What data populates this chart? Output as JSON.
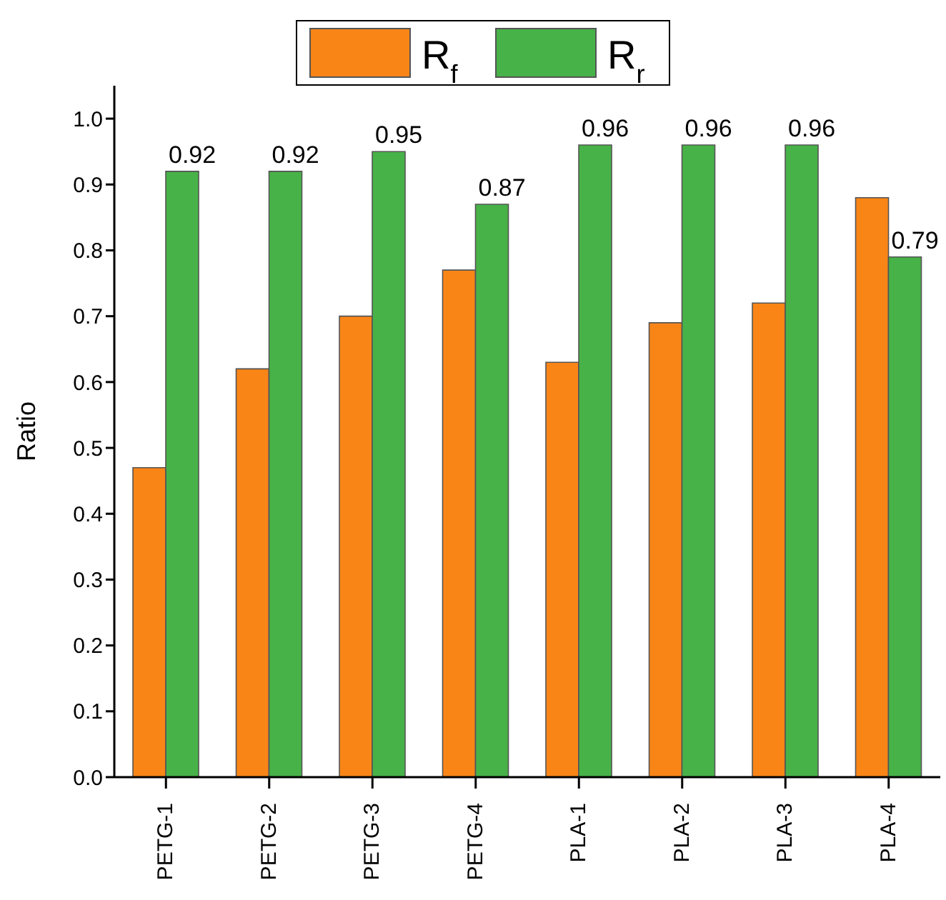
{
  "chart_data": {
    "type": "bar",
    "ylabel": "Ratio",
    "categories": [
      "PETG-1",
      "PETG-2",
      "PETG-3",
      "PETG-4",
      "PLA-1",
      "PLA-2",
      "PLA-3",
      "PLA-4"
    ],
    "series": [
      {
        "name": "R$_{f}$",
        "color": "#f98517",
        "values": [
          0.47,
          0.62,
          0.7,
          0.77,
          0.63,
          0.69,
          0.72,
          0.88
        ]
      },
      {
        "name": "R$_{r}$",
        "color": "#47b248",
        "values": [
          0.92,
          0.92,
          0.95,
          0.87,
          0.96,
          0.96,
          0.96,
          0.79
        ],
        "value_labels": [
          "0.92",
          "0.92",
          "0.95",
          "0.87",
          "0.96",
          "0.96",
          "0.96",
          "0.79"
        ]
      }
    ],
    "ylim": [
      0,
      1.05
    ],
    "yticks": [
      {
        "value": 0,
        "label": "0.0"
      },
      0.1,
      0.2,
      0.3,
      0.4,
      0.5,
      0.6,
      0.7,
      0.8,
      0.9,
      {
        "value": 1,
        "label": "1.0"
      }
    ],
    "grid": false,
    "legend": "top"
  }
}
